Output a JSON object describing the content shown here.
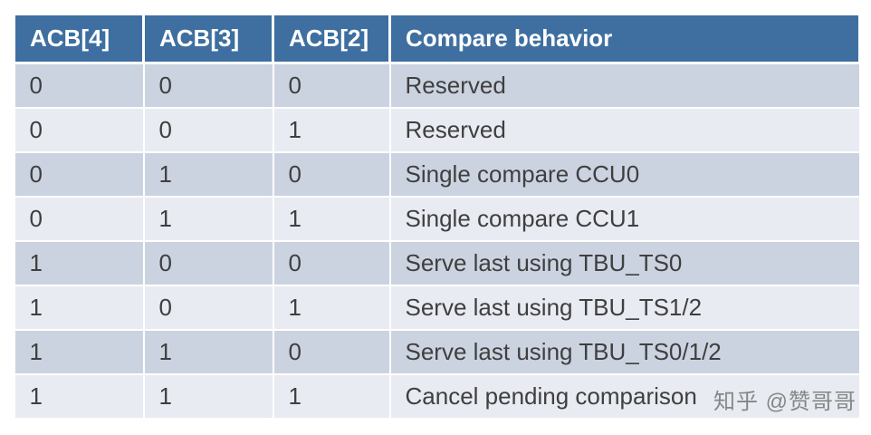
{
  "table": {
    "headers": [
      "ACB[4]",
      "ACB[3]",
      "ACB[2]",
      "Compare behavior"
    ],
    "rows": [
      [
        "0",
        "0",
        "0",
        "Reserved"
      ],
      [
        "0",
        "0",
        "1",
        "Reserved"
      ],
      [
        "0",
        "1",
        "0",
        "Single compare CCU0"
      ],
      [
        "0",
        "1",
        "1",
        "Single compare CCU1"
      ],
      [
        "1",
        "0",
        "0",
        "Serve last using TBU_TS0"
      ],
      [
        "1",
        "0",
        "1",
        "Serve last using TBU_TS1/2"
      ],
      [
        "1",
        "1",
        "0",
        "Serve last using TBU_TS0/1/2"
      ],
      [
        "1",
        "1",
        "1",
        "Cancel pending comparison"
      ]
    ]
  },
  "watermark": {
    "text": "知乎 @赞哥哥"
  },
  "colors": {
    "header_bg": "#3e6fa0",
    "header_text": "#ffffff",
    "row_odd_bg": "#ccd3e0",
    "row_even_bg": "#e9ebf2",
    "body_text": "#3f3f3f",
    "watermark_text": "#696969"
  }
}
